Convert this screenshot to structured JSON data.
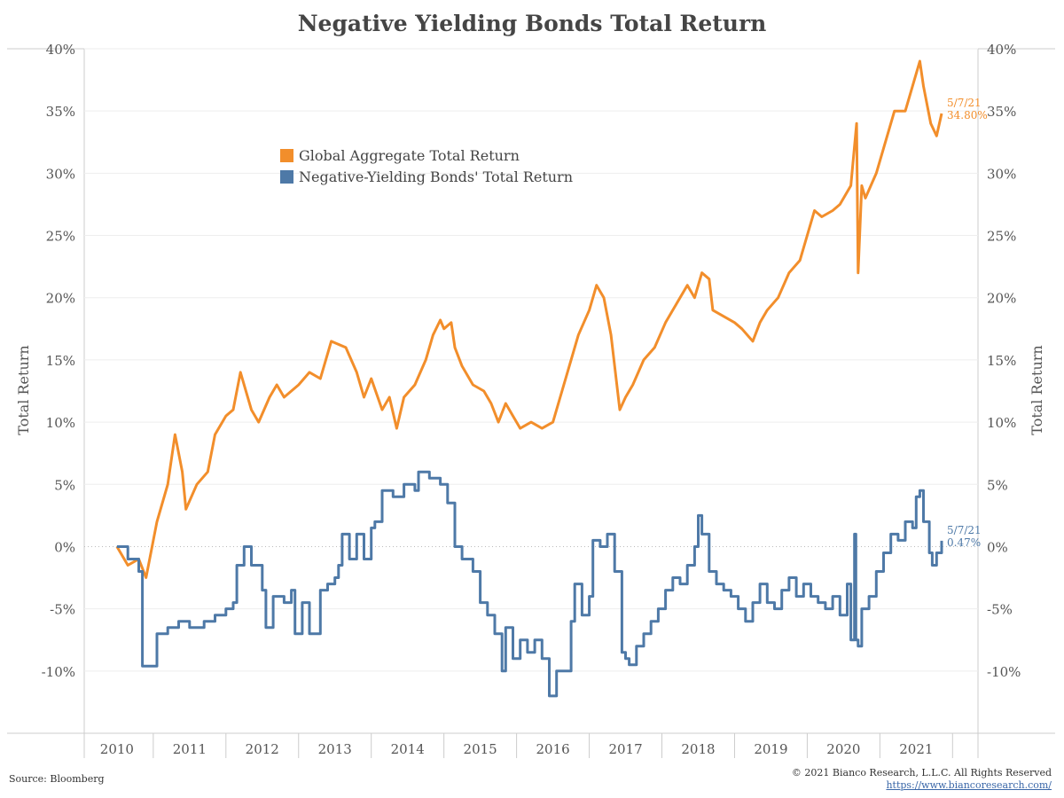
{
  "title": "Negative Yielding Bonds Total Return",
  "source": "Source: Bloomberg",
  "copyright": "© 2021 Bianco Research, L.L.C. All Rights Reserved",
  "url": "https://www.biancoresearch.com/",
  "colors": {
    "global": "#f28e2b",
    "negative": "#4e79a7",
    "grid": "#eeeeee",
    "zero": "#bbbbbb"
  },
  "chart_data": {
    "type": "line",
    "ylabel_left": "Total Return",
    "ylabel_right": "Total Return",
    "ylim": [
      -15,
      40
    ],
    "xlim": [
      2009.55,
      2021.85
    ],
    "y_ticks": [
      {
        "value": 40,
        "label": "40%"
      },
      {
        "value": 35,
        "label": "35%"
      },
      {
        "value": 30,
        "label": "30%"
      },
      {
        "value": 25,
        "label": "25%"
      },
      {
        "value": 20,
        "label": "20%"
      },
      {
        "value": 15,
        "label": "15%"
      },
      {
        "value": 10,
        "label": "10%"
      },
      {
        "value": 5,
        "label": "5%"
      },
      {
        "value": 0,
        "label": "0%"
      },
      {
        "value": -5,
        "label": "-5%"
      },
      {
        "value": -10,
        "label": "-10%"
      }
    ],
    "x_ticks": [
      "2010",
      "2011",
      "2012",
      "2013",
      "2014",
      "2015",
      "2016",
      "2017",
      "2018",
      "2019",
      "2020",
      "2021"
    ],
    "series": [
      {
        "name": "Global Aggregate Total Return",
        "key": "global",
        "end_date": "5/7/21",
        "end_label": "34.80%",
        "points": [
          [
            2010.0,
            0
          ],
          [
            2010.15,
            -1.5
          ],
          [
            2010.3,
            -1
          ],
          [
            2010.4,
            -2.5
          ],
          [
            2010.55,
            2
          ],
          [
            2010.7,
            5
          ],
          [
            2010.8,
            9
          ],
          [
            2010.9,
            6
          ],
          [
            2010.95,
            3
          ],
          [
            2011.1,
            5
          ],
          [
            2011.25,
            6
          ],
          [
            2011.35,
            9
          ],
          [
            2011.5,
            10.5
          ],
          [
            2011.6,
            11
          ],
          [
            2011.7,
            14
          ],
          [
            2011.85,
            11
          ],
          [
            2011.95,
            10
          ],
          [
            2012.1,
            12
          ],
          [
            2012.2,
            13
          ],
          [
            2012.3,
            12
          ],
          [
            2012.5,
            13
          ],
          [
            2012.65,
            14
          ],
          [
            2012.8,
            13.5
          ],
          [
            2012.95,
            16.5
          ],
          [
            2013.15,
            16
          ],
          [
            2013.3,
            14
          ],
          [
            2013.4,
            12
          ],
          [
            2013.5,
            13.5
          ],
          [
            2013.65,
            11
          ],
          [
            2013.75,
            12
          ],
          [
            2013.85,
            9.5
          ],
          [
            2013.95,
            12
          ],
          [
            2014.1,
            13
          ],
          [
            2014.25,
            15
          ],
          [
            2014.35,
            17
          ],
          [
            2014.45,
            18.2
          ],
          [
            2014.5,
            17.5
          ],
          [
            2014.6,
            18
          ],
          [
            2014.65,
            16
          ],
          [
            2014.75,
            14.5
          ],
          [
            2014.9,
            13
          ],
          [
            2015.05,
            12.5
          ],
          [
            2015.15,
            11.5
          ],
          [
            2015.25,
            10
          ],
          [
            2015.35,
            11.5
          ],
          [
            2015.45,
            10.5
          ],
          [
            2015.55,
            9.5
          ],
          [
            2015.7,
            10
          ],
          [
            2015.85,
            9.5
          ],
          [
            2016.0,
            10
          ],
          [
            2016.1,
            12
          ],
          [
            2016.25,
            15
          ],
          [
            2016.35,
            17
          ],
          [
            2016.5,
            19
          ],
          [
            2016.6,
            21
          ],
          [
            2016.7,
            20
          ],
          [
            2016.8,
            17
          ],
          [
            2016.88,
            13
          ],
          [
            2016.92,
            11
          ],
          [
            2017.0,
            12
          ],
          [
            2017.1,
            13
          ],
          [
            2017.25,
            15
          ],
          [
            2017.4,
            16
          ],
          [
            2017.55,
            18
          ],
          [
            2017.7,
            19.5
          ],
          [
            2017.85,
            21
          ],
          [
            2017.95,
            20
          ],
          [
            2018.05,
            22
          ],
          [
            2018.15,
            21.5
          ],
          [
            2018.2,
            19
          ],
          [
            2018.35,
            18.5
          ],
          [
            2018.5,
            18
          ],
          [
            2018.6,
            17.5
          ],
          [
            2018.75,
            16.5
          ],
          [
            2018.85,
            18
          ],
          [
            2018.95,
            19
          ],
          [
            2019.1,
            20
          ],
          [
            2019.25,
            22
          ],
          [
            2019.4,
            23
          ],
          [
            2019.5,
            25
          ],
          [
            2019.6,
            27
          ],
          [
            2019.7,
            26.5
          ],
          [
            2019.85,
            27
          ],
          [
            2019.95,
            27.5
          ],
          [
            2020.1,
            29
          ],
          [
            2020.18,
            34
          ],
          [
            2020.2,
            22
          ],
          [
            2020.25,
            29
          ],
          [
            2020.3,
            28
          ],
          [
            2020.45,
            30
          ],
          [
            2020.55,
            32
          ],
          [
            2020.7,
            35
          ],
          [
            2020.85,
            35
          ],
          [
            2021.0,
            38
          ],
          [
            2021.05,
            39
          ],
          [
            2021.1,
            37
          ],
          [
            2021.2,
            34
          ],
          [
            2021.28,
            33
          ],
          [
            2021.35,
            34.8
          ]
        ]
      },
      {
        "name": "Negative-Yielding Bonds' Total Return",
        "key": "negative",
        "end_date": "5/7/21",
        "end_label": "0.47%",
        "step": true,
        "points": [
          [
            2010.0,
            0
          ],
          [
            2010.1,
            0
          ],
          [
            2010.15,
            -1
          ],
          [
            2010.3,
            -2
          ],
          [
            2010.35,
            -9.6
          ],
          [
            2010.55,
            -7
          ],
          [
            2010.7,
            -6.5
          ],
          [
            2010.85,
            -6
          ],
          [
            2011.0,
            -6.5
          ],
          [
            2011.2,
            -6
          ],
          [
            2011.35,
            -5.5
          ],
          [
            2011.5,
            -5
          ],
          [
            2011.6,
            -4.5
          ],
          [
            2011.65,
            -1.5
          ],
          [
            2011.75,
            0
          ],
          [
            2011.85,
            -1.5
          ],
          [
            2012.0,
            -3.5
          ],
          [
            2012.05,
            -6.5
          ],
          [
            2012.15,
            -4
          ],
          [
            2012.3,
            -4.5
          ],
          [
            2012.4,
            -3.5
          ],
          [
            2012.45,
            -7
          ],
          [
            2012.55,
            -4.5
          ],
          [
            2012.65,
            -7
          ],
          [
            2012.8,
            -3.5
          ],
          [
            2012.9,
            -3
          ],
          [
            2013.0,
            -2.5
          ],
          [
            2013.05,
            -1.5
          ],
          [
            2013.1,
            1
          ],
          [
            2013.2,
            -1
          ],
          [
            2013.3,
            1
          ],
          [
            2013.4,
            -1
          ],
          [
            2013.5,
            1.5
          ],
          [
            2013.55,
            2
          ],
          [
            2013.65,
            4.5
          ],
          [
            2013.8,
            4
          ],
          [
            2013.95,
            5
          ],
          [
            2014.1,
            4.5
          ],
          [
            2014.15,
            6
          ],
          [
            2014.3,
            5.5
          ],
          [
            2014.45,
            5
          ],
          [
            2014.55,
            3.5
          ],
          [
            2014.65,
            0
          ],
          [
            2014.75,
            -1
          ],
          [
            2014.9,
            -2
          ],
          [
            2015.0,
            -4.5
          ],
          [
            2015.1,
            -5.5
          ],
          [
            2015.2,
            -7
          ],
          [
            2015.3,
            -10
          ],
          [
            2015.35,
            -6.5
          ],
          [
            2015.45,
            -9
          ],
          [
            2015.55,
            -7.5
          ],
          [
            2015.65,
            -8.5
          ],
          [
            2015.75,
            -7.5
          ],
          [
            2015.85,
            -9
          ],
          [
            2015.95,
            -12
          ],
          [
            2016.05,
            -10
          ],
          [
            2016.15,
            -10
          ],
          [
            2016.25,
            -6
          ],
          [
            2016.3,
            -3
          ],
          [
            2016.4,
            -5.5
          ],
          [
            2016.5,
            -4
          ],
          [
            2016.55,
            0.5
          ],
          [
            2016.65,
            0
          ],
          [
            2016.75,
            1
          ],
          [
            2016.85,
            -2
          ],
          [
            2016.95,
            -8.5
          ],
          [
            2017.0,
            -9
          ],
          [
            2017.05,
            -9.5
          ],
          [
            2017.15,
            -8
          ],
          [
            2017.25,
            -7
          ],
          [
            2017.35,
            -6
          ],
          [
            2017.45,
            -5
          ],
          [
            2017.55,
            -3.5
          ],
          [
            2017.65,
            -2.5
          ],
          [
            2017.75,
            -3
          ],
          [
            2017.85,
            -1.5
          ],
          [
            2017.95,
            0
          ],
          [
            2018.0,
            2.5
          ],
          [
            2018.05,
            1
          ],
          [
            2018.15,
            -2
          ],
          [
            2018.25,
            -3
          ],
          [
            2018.35,
            -3.5
          ],
          [
            2018.45,
            -4
          ],
          [
            2018.55,
            -5
          ],
          [
            2018.65,
            -6
          ],
          [
            2018.75,
            -4.5
          ],
          [
            2018.85,
            -3
          ],
          [
            2018.95,
            -4.5
          ],
          [
            2019.05,
            -5
          ],
          [
            2019.15,
            -3.5
          ],
          [
            2019.25,
            -2.5
          ],
          [
            2019.35,
            -4
          ],
          [
            2019.45,
            -3
          ],
          [
            2019.55,
            -4
          ],
          [
            2019.65,
            -4.5
          ],
          [
            2019.75,
            -5
          ],
          [
            2019.85,
            -4
          ],
          [
            2019.95,
            -5.5
          ],
          [
            2020.05,
            -3
          ],
          [
            2020.1,
            -7.5
          ],
          [
            2020.15,
            1
          ],
          [
            2020.17,
            -7.5
          ],
          [
            2020.2,
            -8
          ],
          [
            2020.25,
            -5
          ],
          [
            2020.35,
            -4
          ],
          [
            2020.45,
            -2
          ],
          [
            2020.55,
            -0.5
          ],
          [
            2020.65,
            1
          ],
          [
            2020.75,
            0.5
          ],
          [
            2020.85,
            2
          ],
          [
            2020.95,
            1.5
          ],
          [
            2021.0,
            4
          ],
          [
            2021.05,
            4.5
          ],
          [
            2021.1,
            2
          ],
          [
            2021.18,
            -0.5
          ],
          [
            2021.22,
            -1.5
          ],
          [
            2021.28,
            -0.5
          ],
          [
            2021.35,
            0.47
          ]
        ]
      }
    ]
  }
}
